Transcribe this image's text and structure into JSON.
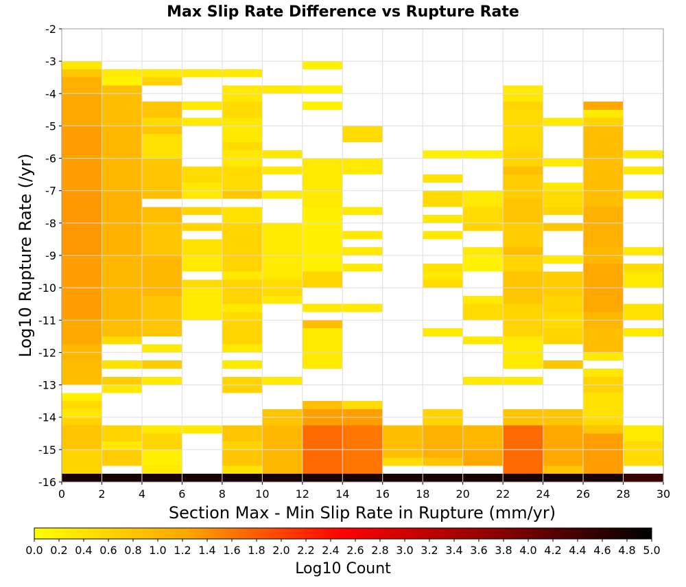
{
  "chart_data": {
    "type": "heatmap",
    "title": "Max Slip Rate Difference vs Rupture Rate",
    "xlabel": "Section Max - Min Slip Rate in Rupture (mm/yr)",
    "ylabel": "Log10 Rupture Rate (/yr)",
    "xlim": [
      0,
      30
    ],
    "ylim": [
      -16,
      -2
    ],
    "x_ticks": [
      "0",
      "2",
      "4",
      "6",
      "8",
      "10",
      "12",
      "14",
      "16",
      "18",
      "20",
      "22",
      "24",
      "26",
      "28",
      "30"
    ],
    "y_ticks": [
      "-2",
      "-3",
      "-4",
      "-5",
      "-6",
      "-7",
      "-8",
      "-9",
      "-10",
      "-11",
      "-12",
      "-13",
      "-14",
      "-15",
      "-16"
    ],
    "x_bin_width": 2,
    "y_bin_height": 0.25,
    "grid": true,
    "colorbar": {
      "label": "Log10 Count",
      "range": [
        0,
        5
      ],
      "ticks": [
        "0.0",
        "0.2",
        "0.4",
        "0.6",
        "0.8",
        "1.0",
        "1.2",
        "1.4",
        "1.6",
        "1.8",
        "2.0",
        "2.2",
        "2.4",
        "2.6",
        "2.8",
        "3.0",
        "3.2",
        "3.4",
        "3.6",
        "3.8",
        "4.0",
        "4.2",
        "4.4",
        "4.6",
        "4.8",
        "5.0"
      ],
      "colors": [
        "#ffff00",
        "#ffa500",
        "#ff0000",
        "#8b0000",
        "#000000"
      ],
      "placement": "bottom"
    },
    "columns": [
      {
        "x": 0,
        "runs": [
          [
            -3.0,
            -3.25,
            0.3
          ],
          [
            -3.25,
            -3.5,
            0.8
          ],
          [
            -3.5,
            -4.0,
            1.1
          ],
          [
            -4.0,
            -5.0,
            1.2
          ],
          [
            -5.0,
            -7.0,
            1.3
          ],
          [
            -7.0,
            -9.0,
            1.35
          ],
          [
            -9.0,
            -11.0,
            1.3
          ],
          [
            -11.0,
            -11.75,
            1.2
          ],
          [
            -11.75,
            -12.25,
            1.0
          ],
          [
            -12.25,
            -13.0,
            0.9
          ],
          [
            -13.25,
            -13.5,
            0.2
          ],
          [
            -13.5,
            -13.75,
            0.5
          ],
          [
            -13.75,
            -14.0,
            0.3
          ],
          [
            -14.0,
            -14.25,
            0.6
          ],
          [
            -14.25,
            -15.0,
            0.8
          ],
          [
            -15.0,
            -15.75,
            0.6
          ],
          [
            -15.75,
            -16.0,
            4.8
          ]
        ]
      },
      {
        "x": 2,
        "runs": [
          [
            -3.25,
            -3.5,
            0.3
          ],
          [
            -3.5,
            -3.75,
            0.15
          ],
          [
            -3.75,
            -5.0,
            0.9
          ],
          [
            -5.0,
            -7.0,
            1.0
          ],
          [
            -7.0,
            -9.0,
            1.05
          ],
          [
            -9.0,
            -11.0,
            1.0
          ],
          [
            -11.0,
            -11.5,
            0.9
          ],
          [
            -11.5,
            -11.75,
            0.5
          ],
          [
            -12.25,
            -12.5,
            0.4
          ],
          [
            -12.75,
            -13.0,
            0.7
          ],
          [
            -13.0,
            -13.25,
            0.3
          ],
          [
            -14.25,
            -14.75,
            0.6
          ],
          [
            -14.75,
            -15.0,
            0.3
          ],
          [
            -15.0,
            -15.5,
            0.7
          ],
          [
            -15.75,
            -16.0,
            4.8
          ]
        ]
      },
      {
        "x": 4,
        "runs": [
          [
            -3.25,
            -3.5,
            0.3
          ],
          [
            -3.5,
            -3.75,
            0.6
          ],
          [
            -4.25,
            -4.75,
            0.8
          ],
          [
            -4.75,
            -5.0,
            0.5
          ],
          [
            -5.0,
            -5.25,
            0.8
          ],
          [
            -5.25,
            -6.0,
            0.4
          ],
          [
            -6.0,
            -7.0,
            0.8
          ],
          [
            -7.0,
            -7.25,
            0.9
          ],
          [
            -7.5,
            -8.0,
            0.9
          ],
          [
            -8.0,
            -9.0,
            0.8
          ],
          [
            -9.0,
            -10.25,
            1.0
          ],
          [
            -10.25,
            -11.5,
            0.8
          ],
          [
            -11.75,
            -12.0,
            0.3
          ],
          [
            -12.25,
            -12.5,
            0.7
          ],
          [
            -12.75,
            -13.0,
            0.3
          ],
          [
            -14.25,
            -14.5,
            0.3
          ],
          [
            -14.5,
            -15.0,
            0.6
          ],
          [
            -15.0,
            -15.5,
            0.2
          ],
          [
            -15.5,
            -15.75,
            0.3
          ],
          [
            -15.75,
            -16.0,
            4.8
          ]
        ]
      },
      {
        "x": 6,
        "runs": [
          [
            -3.25,
            -3.5,
            0.3
          ],
          [
            -4.25,
            -4.5,
            0.3
          ],
          [
            -4.75,
            -5.0,
            0.3
          ],
          [
            -6.25,
            -6.75,
            0.5
          ],
          [
            -6.75,
            -7.0,
            0.3
          ],
          [
            -7.0,
            -7.25,
            0.3
          ],
          [
            -7.5,
            -7.75,
            0.6
          ],
          [
            -8.0,
            -8.25,
            0.6
          ],
          [
            -8.5,
            -9.0,
            0.4
          ],
          [
            -9.0,
            -9.5,
            0.3
          ],
          [
            -9.75,
            -10.0,
            0.5
          ],
          [
            -10.0,
            -10.75,
            0.3
          ],
          [
            -10.75,
            -11.0,
            0.3
          ],
          [
            -14.25,
            -14.5,
            0.3
          ],
          [
            -15.75,
            -16.0,
            4.8
          ]
        ]
      },
      {
        "x": 8,
        "runs": [
          [
            -3.25,
            -3.5,
            0.3
          ],
          [
            -3.75,
            -4.25,
            0.3
          ],
          [
            -4.25,
            -4.75,
            0.5
          ],
          [
            -4.75,
            -5.0,
            0.3
          ],
          [
            -5.0,
            -5.5,
            0.3
          ],
          [
            -5.5,
            -5.75,
            0.5
          ],
          [
            -5.75,
            -6.25,
            0.3
          ],
          [
            -6.25,
            -7.0,
            0.5
          ],
          [
            -7.0,
            -7.25,
            0.8
          ],
          [
            -7.5,
            -8.0,
            0.4
          ],
          [
            -8.0,
            -9.0,
            0.6
          ],
          [
            -9.0,
            -9.5,
            0.6
          ],
          [
            -9.5,
            -9.75,
            0.3
          ],
          [
            -9.75,
            -10.5,
            0.6
          ],
          [
            -10.5,
            -10.75,
            0.3
          ],
          [
            -10.75,
            -11.0,
            0.5
          ],
          [
            -11.0,
            -11.75,
            0.6
          ],
          [
            -11.75,
            -12.0,
            0.3
          ],
          [
            -12.25,
            -12.5,
            0.3
          ],
          [
            -12.75,
            -13.25,
            0.6
          ],
          [
            -14.25,
            -14.75,
            0.8
          ],
          [
            -14.75,
            -15.0,
            0.6
          ],
          [
            -15.0,
            -15.5,
            0.8
          ],
          [
            -15.5,
            -15.75,
            0.4
          ],
          [
            -15.75,
            -16.0,
            4.8
          ]
        ]
      },
      {
        "x": 10,
        "runs": [
          [
            -3.75,
            -4.0,
            0.3
          ],
          [
            -5.75,
            -6.0,
            0.3
          ],
          [
            -6.25,
            -6.5,
            0.3
          ],
          [
            -7.0,
            -7.25,
            0.3
          ],
          [
            -8.0,
            -9.75,
            0.3
          ],
          [
            -9.75,
            -10.25,
            0.5
          ],
          [
            -10.25,
            -10.5,
            0.3
          ],
          [
            -12.75,
            -13.0,
            0.3
          ],
          [
            -13.75,
            -14.25,
            0.8
          ],
          [
            -14.25,
            -15.5,
            1.0
          ],
          [
            -15.5,
            -16.0,
            1.0
          ],
          [
            -15.75,
            -16.0,
            4.8
          ]
        ]
      },
      {
        "x": 12,
        "runs": [
          [
            -3.0,
            -3.25,
            0.2
          ],
          [
            -3.75,
            -4.0,
            0.2
          ],
          [
            -4.25,
            -4.5,
            0.2
          ],
          [
            -6.0,
            -7.5,
            0.3
          ],
          [
            -7.5,
            -8.25,
            0.2
          ],
          [
            -8.25,
            -8.75,
            0.2
          ],
          [
            -8.75,
            -9.5,
            0.2
          ],
          [
            -9.5,
            -10.0,
            0.6
          ],
          [
            -10.5,
            -10.75,
            0.3
          ],
          [
            -11.0,
            -11.25,
            0.9
          ],
          [
            -11.25,
            -12.0,
            0.3
          ],
          [
            -12.0,
            -12.5,
            0.3
          ],
          [
            -13.5,
            -13.75,
            0.9
          ],
          [
            -13.75,
            -14.25,
            1.3
          ],
          [
            -14.25,
            -15.75,
            1.7
          ],
          [
            -15.75,
            -16.0,
            4.8
          ]
        ]
      },
      {
        "x": 14,
        "runs": [
          [
            -5.0,
            -5.5,
            0.5
          ],
          [
            -6.0,
            -6.5,
            0.3
          ],
          [
            -7.5,
            -7.75,
            0.3
          ],
          [
            -8.25,
            -8.5,
            0.3
          ],
          [
            -8.75,
            -9.0,
            0.3
          ],
          [
            -9.25,
            -9.5,
            0.3
          ],
          [
            -10.5,
            -10.75,
            0.3
          ],
          [
            -13.5,
            -13.75,
            0.5
          ],
          [
            -13.75,
            -14.25,
            1.3
          ],
          [
            -14.25,
            -15.75,
            1.6
          ],
          [
            -15.75,
            -16.0,
            4.8
          ]
        ]
      },
      {
        "x": 16,
        "runs": [
          [
            -14.25,
            -15.25,
            0.9
          ],
          [
            -15.25,
            -15.5,
            0.5
          ],
          [
            -15.75,
            -16.0,
            4.8
          ]
        ]
      },
      {
        "x": 18,
        "runs": [
          [
            -5.75,
            -6.0,
            0.2
          ],
          [
            -6.5,
            -6.75,
            0.4
          ],
          [
            -7.0,
            -7.5,
            0.5
          ],
          [
            -7.75,
            -8.0,
            0.3
          ],
          [
            -8.25,
            -8.5,
            0.3
          ],
          [
            -9.25,
            -9.5,
            0.4
          ],
          [
            -9.5,
            -9.75,
            0.3
          ],
          [
            -9.75,
            -10.0,
            0.5
          ],
          [
            -11.25,
            -11.5,
            0.3
          ],
          [
            -13.75,
            -14.25,
            0.6
          ],
          [
            -14.25,
            -15.25,
            1.1
          ],
          [
            -15.25,
            -15.5,
            0.8
          ],
          [
            -15.75,
            -16.0,
            4.8
          ]
        ]
      },
      {
        "x": 20,
        "runs": [
          [
            -5.75,
            -6.0,
            0.2
          ],
          [
            -7.0,
            -7.5,
            0.3
          ],
          [
            -7.5,
            -8.0,
            0.5
          ],
          [
            -8.0,
            -8.25,
            0.6
          ],
          [
            -8.75,
            -9.0,
            0.3
          ],
          [
            -9.0,
            -9.5,
            0.2
          ],
          [
            -10.25,
            -10.5,
            0.3
          ],
          [
            -10.5,
            -11.0,
            0.5
          ],
          [
            -11.5,
            -11.75,
            0.3
          ],
          [
            -12.75,
            -13.0,
            0.3
          ],
          [
            -14.25,
            -15.0,
            1.0
          ],
          [
            -15.0,
            -15.5,
            1.2
          ],
          [
            -15.75,
            -16.0,
            4.8
          ]
        ]
      },
      {
        "x": 22,
        "runs": [
          [
            -3.75,
            -4.0,
            0.3
          ],
          [
            -4.0,
            -4.25,
            0.3
          ],
          [
            -4.25,
            -4.5,
            0.6
          ],
          [
            -4.5,
            -5.75,
            0.5
          ],
          [
            -5.75,
            -6.25,
            0.6
          ],
          [
            -6.25,
            -6.5,
            0.9
          ],
          [
            -6.5,
            -7.25,
            0.7
          ],
          [
            -7.25,
            -8.0,
            0.8
          ],
          [
            -8.0,
            -8.75,
            0.7
          ],
          [
            -8.75,
            -9.0,
            0.9
          ],
          [
            -9.0,
            -9.5,
            0.6
          ],
          [
            -9.5,
            -10.5,
            0.8
          ],
          [
            -10.5,
            -11.5,
            0.6
          ],
          [
            -11.5,
            -12.5,
            0.3
          ],
          [
            -12.75,
            -13.0,
            0.3
          ],
          [
            -13.75,
            -14.25,
            0.8
          ],
          [
            -14.25,
            -15.75,
            1.7
          ],
          [
            -15.75,
            -16.0,
            4.8
          ]
        ]
      },
      {
        "x": 24,
        "runs": [
          [
            -4.75,
            -5.0,
            0.3
          ],
          [
            -6.0,
            -6.25,
            0.3
          ],
          [
            -6.75,
            -7.0,
            0.3
          ],
          [
            -7.0,
            -7.5,
            0.5
          ],
          [
            -7.5,
            -7.75,
            0.6
          ],
          [
            -8.0,
            -8.25,
            0.8
          ],
          [
            -9.0,
            -9.25,
            0.3
          ],
          [
            -9.5,
            -10.25,
            0.7
          ],
          [
            -10.25,
            -10.75,
            0.6
          ],
          [
            -10.75,
            -11.25,
            0.5
          ],
          [
            -11.25,
            -11.75,
            0.6
          ],
          [
            -12.25,
            -12.5,
            0.8
          ],
          [
            -13.75,
            -14.25,
            0.8
          ],
          [
            -14.25,
            -15.5,
            1.2
          ],
          [
            -15.5,
            -15.75,
            0.8
          ],
          [
            -15.75,
            -16.0,
            4.8
          ]
        ]
      },
      {
        "x": 26,
        "runs": [
          [
            -4.25,
            -4.5,
            1.2
          ],
          [
            -4.5,
            -4.75,
            0.3
          ],
          [
            -4.75,
            -5.0,
            0.6
          ],
          [
            -5.0,
            -5.75,
            0.9
          ],
          [
            -5.75,
            -7.5,
            0.9
          ],
          [
            -7.5,
            -8.75,
            1.1
          ],
          [
            -8.75,
            -9.25,
            1.0
          ],
          [
            -9.25,
            -10.75,
            1.2
          ],
          [
            -10.75,
            -11.25,
            1.0
          ],
          [
            -11.25,
            -12.0,
            0.9
          ],
          [
            -12.0,
            -12.25,
            0.3
          ],
          [
            -12.5,
            -12.75,
            0.3
          ],
          [
            -12.75,
            -13.25,
            0.6
          ],
          [
            -13.25,
            -14.0,
            0.4
          ],
          [
            -14.0,
            -14.25,
            0.5
          ],
          [
            -14.25,
            -14.5,
            0.8
          ],
          [
            -14.5,
            -15.75,
            1.3
          ],
          [
            -15.75,
            -16.0,
            4.8
          ]
        ]
      },
      {
        "x": 28,
        "runs": [
          [
            -5.75,
            -6.0,
            0.3
          ],
          [
            -6.25,
            -6.5,
            0.3
          ],
          [
            -7.0,
            -7.25,
            0.3
          ],
          [
            -8.75,
            -9.0,
            0.3
          ],
          [
            -9.25,
            -9.5,
            0.5
          ],
          [
            -9.5,
            -10.0,
            0.3
          ],
          [
            -10.5,
            -11.0,
            0.4
          ],
          [
            -11.25,
            -11.5,
            0.3
          ],
          [
            -14.25,
            -14.75,
            0.3
          ],
          [
            -14.75,
            -15.5,
            0.5
          ],
          [
            -15.75,
            -16.0,
            4.5
          ]
        ]
      }
    ]
  }
}
